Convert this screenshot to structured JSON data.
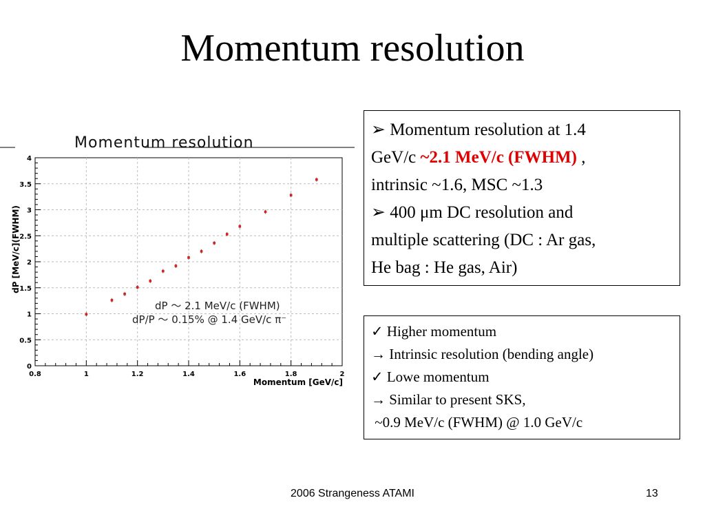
{
  "slide": {
    "title": "Momentum resolution",
    "footer_center": "2006 Strangeness ATAMI",
    "page_number": "13"
  },
  "box1": {
    "line1_marker": "➢",
    "line1_text": "Momentum resolution at 1.4",
    "line2_pre": "GeV/c ",
    "line2_highlight": "~2.1 MeV/c (FWHM)",
    "line2_post": " ,",
    "line3": "intrinsic ~1.6, MSC ~1.3",
    "line4_marker": "➢",
    "line4_text": "400 μm DC resolution and",
    "line5": "multiple scattering (DC : Ar gas,",
    "line6": "He bag : He gas, Air)",
    "highlight_color": "#e00000"
  },
  "box2": {
    "items": [
      "✓ Higher momentum",
      "→ Intrinsic resolution (bending angle)",
      "✓ Lowe momentum",
      "→ Similar to present SKS,",
      " ~0.9 MeV/c (FWHM) @ 1.0 GeV/c"
    ]
  },
  "chart_data": {
    "type": "scatter",
    "title": "Momentum resolution",
    "xlabel": "Momentum [GeV/c]",
    "ylabel": "dP [MeV/c](FWHM)",
    "xlim": [
      0.8,
      2
    ],
    "ylim": [
      0,
      4
    ],
    "x_ticks": [
      "0.8",
      "1",
      "1.2",
      "1.4",
      "1.6",
      "1.8",
      "2"
    ],
    "y_ticks": [
      "0",
      "0.5",
      "1",
      "1.5",
      "2",
      "2.5",
      "3",
      "3.5",
      "4"
    ],
    "grid": true,
    "marker_color": "#d42020",
    "annotation_line1": "dP ～ 2.1 MeV/c (FWHM)",
    "annotation_line2": "dP/P ～ 0.15% @ 1.4 GeV/c  π⁻",
    "points": [
      {
        "x": 1.0,
        "y": 0.99
      },
      {
        "x": 1.1,
        "y": 1.26
      },
      {
        "x": 1.15,
        "y": 1.38
      },
      {
        "x": 1.2,
        "y": 1.51
      },
      {
        "x": 1.25,
        "y": 1.63
      },
      {
        "x": 1.3,
        "y": 1.82
      },
      {
        "x": 1.35,
        "y": 1.92
      },
      {
        "x": 1.4,
        "y": 2.08
      },
      {
        "x": 1.45,
        "y": 2.2
      },
      {
        "x": 1.5,
        "y": 2.36
      },
      {
        "x": 1.55,
        "y": 2.53
      },
      {
        "x": 1.6,
        "y": 2.68
      },
      {
        "x": 1.7,
        "y": 2.96
      },
      {
        "x": 1.8,
        "y": 3.28
      },
      {
        "x": 1.9,
        "y": 3.58
      }
    ]
  }
}
